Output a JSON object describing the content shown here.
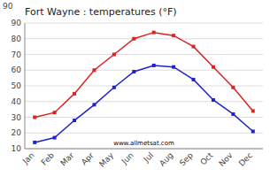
{
  "chart_data": {
    "type": "line",
    "title": "Fort Wayne : temperatures (°F)",
    "categories": [
      "Jan",
      "Feb",
      "Mar",
      "Apr",
      "May",
      "Jun",
      "Jul",
      "Aug",
      "Sep",
      "Oct",
      "Nov",
      "Dec"
    ],
    "series": [
      {
        "color": "#dd2222",
        "marker": "square",
        "line_style": "solid",
        "values": [
          30,
          33,
          45,
          60,
          70,
          80,
          84,
          82,
          75,
          62,
          49,
          34
        ]
      },
      {
        "color": "#2222cc",
        "marker": "square",
        "line_style": "solid",
        "values": [
          14,
          17,
          28,
          38,
          49,
          59,
          63,
          62,
          54,
          41,
          32,
          21
        ]
      }
    ],
    "ylim": [
      10,
      90
    ],
    "yticks": [
      10,
      20,
      30,
      40,
      50,
      60,
      70,
      80,
      90
    ],
    "grid": true,
    "annotations": [
      "90",
      "www.allmetsat.com"
    ]
  }
}
